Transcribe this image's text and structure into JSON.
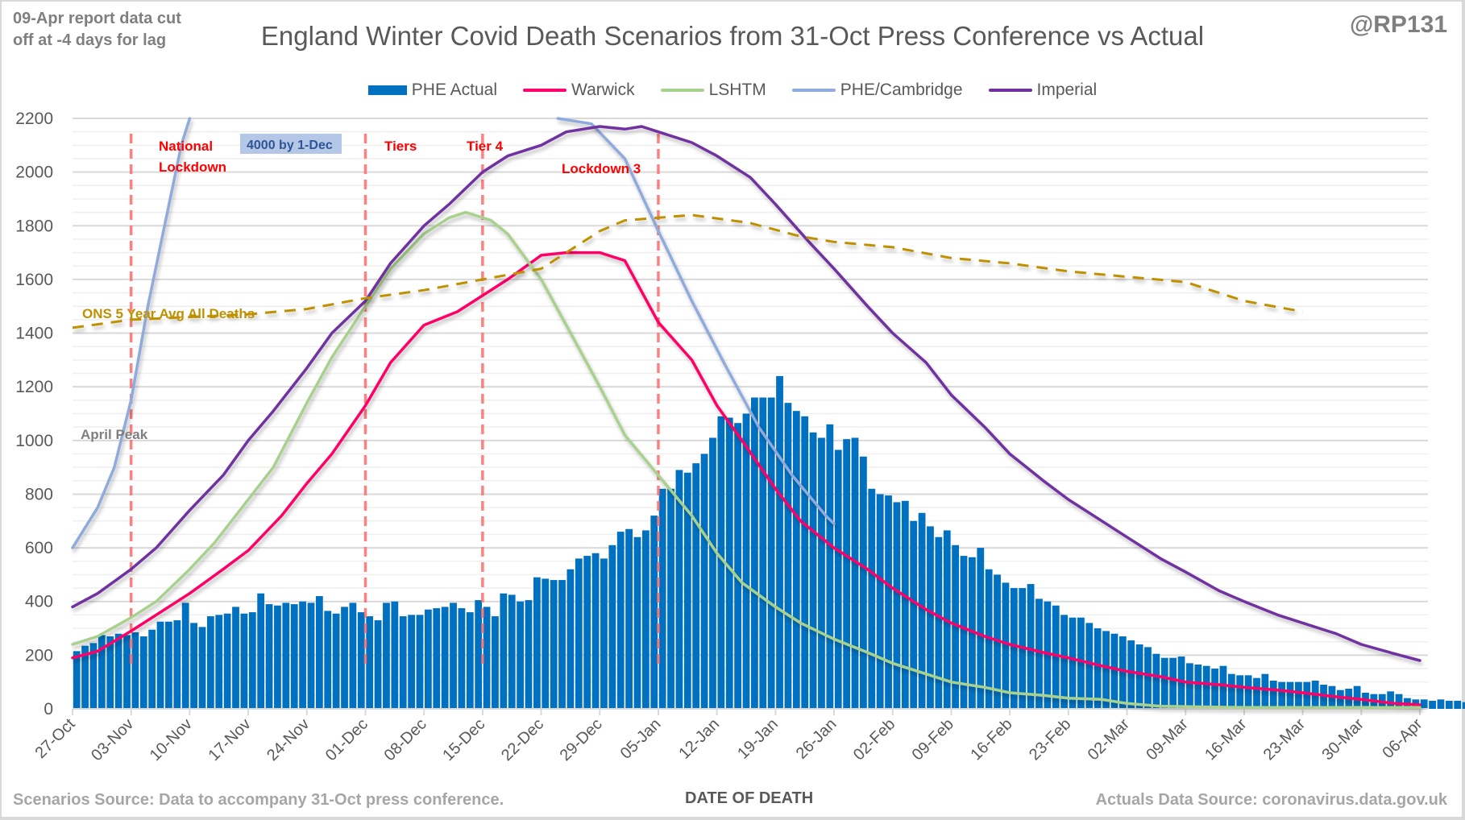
{
  "header": {
    "note": [
      "09-Apr report data cut",
      "off at -4 days for lag"
    ],
    "title": "England Winter Covid Death Scenarios from 31-Oct Press Conference vs Actual",
    "handle": "@RP131"
  },
  "footer": {
    "scenarios_source": "Scenarios Source: Data to accompany 31-Oct press conference.",
    "actuals_source": "Actuals Data Source: coronavirus.data.gov.uk"
  },
  "chart_data": {
    "type": "bar",
    "title": "England Winter Covid Death Scenarios from 31-Oct Press Conference vs Actual",
    "xlabel": "DATE OF DEATH",
    "ylabel": "",
    "ylim": [
      0,
      2200
    ],
    "yticks": [
      0,
      200,
      400,
      600,
      800,
      1000,
      1200,
      1400,
      1600,
      1800,
      2000,
      2200
    ],
    "y_minor_step": 50,
    "grid": true,
    "legend_position": "top",
    "x_start_date": "27-Oct",
    "x_days": 161,
    "xticks": [
      {
        "day": 0,
        "label": "27-Oct"
      },
      {
        "day": 7,
        "label": "03-Nov"
      },
      {
        "day": 14,
        "label": "10-Nov"
      },
      {
        "day": 21,
        "label": "17-Nov"
      },
      {
        "day": 28,
        "label": "24-Nov"
      },
      {
        "day": 35,
        "label": "01-Dec"
      },
      {
        "day": 42,
        "label": "08-Dec"
      },
      {
        "day": 49,
        "label": "15-Dec"
      },
      {
        "day": 56,
        "label": "22-Dec"
      },
      {
        "day": 63,
        "label": "29-Dec"
      },
      {
        "day": 70,
        "label": "05-Jan"
      },
      {
        "day": 77,
        "label": "12-Jan"
      },
      {
        "day": 84,
        "label": "19-Jan"
      },
      {
        "day": 91,
        "label": "26-Jan"
      },
      {
        "day": 98,
        "label": "02-Feb"
      },
      {
        "day": 105,
        "label": "09-Feb"
      },
      {
        "day": 112,
        "label": "16-Feb"
      },
      {
        "day": 119,
        "label": "23-Feb"
      },
      {
        "day": 126,
        "label": "02-Mar"
      },
      {
        "day": 133,
        "label": "09-Mar"
      },
      {
        "day": 140,
        "label": "16-Mar"
      },
      {
        "day": 147,
        "label": "23-Mar"
      },
      {
        "day": 154,
        "label": "30-Mar"
      },
      {
        "day": 161,
        "label": "06-Apr"
      }
    ],
    "legend": [
      {
        "name": "PHE Actual",
        "kind": "bar",
        "color": "#0070c0"
      },
      {
        "name": "Warwick",
        "kind": "line",
        "color": "#ff0066"
      },
      {
        "name": "LSHTM",
        "kind": "line",
        "color": "#a9d18e"
      },
      {
        "name": "PHE/Cambridge",
        "kind": "line",
        "color": "#8faadc"
      },
      {
        "name": "Imperial",
        "kind": "line",
        "color": "#7030a0"
      }
    ],
    "bars": {
      "name": "PHE Actual",
      "color": "#0070c0",
      "values": [
        215,
        235,
        245,
        275,
        270,
        280,
        275,
        285,
        270,
        295,
        325,
        325,
        330,
        395,
        320,
        305,
        345,
        350,
        355,
        380,
        355,
        360,
        430,
        390,
        385,
        395,
        390,
        400,
        395,
        420,
        365,
        355,
        380,
        395,
        360,
        345,
        330,
        395,
        400,
        345,
        350,
        350,
        370,
        375,
        380,
        395,
        375,
        360,
        405,
        380,
        345,
        430,
        425,
        400,
        405,
        490,
        485,
        480,
        480,
        520,
        560,
        570,
        580,
        560,
        610,
        660,
        670,
        640,
        665,
        720,
        820,
        820,
        890,
        880,
        915,
        950,
        1010,
        1090,
        1085,
        1065,
        1100,
        1160,
        1160,
        1160,
        1240,
        1140,
        1110,
        1090,
        1030,
        1010,
        1060,
        965,
        1005,
        1010,
        940,
        820,
        800,
        795,
        770,
        775,
        700,
        730,
        680,
        640,
        665,
        610,
        570,
        565,
        600,
        520,
        500,
        470,
        450,
        450,
        465,
        410,
        400,
        385,
        350,
        340,
        340,
        320,
        300,
        290,
        280,
        270,
        255,
        240,
        230,
        205,
        190,
        190,
        195,
        170,
        165,
        160,
        150,
        160,
        130,
        125,
        125,
        115,
        130,
        105,
        100,
        100,
        100,
        100,
        105,
        90,
        85,
        70,
        75,
        85,
        60,
        55,
        55,
        65,
        55,
        40,
        35,
        35,
        30,
        35,
        30,
        30,
        25,
        20,
        15,
        15,
        12,
        10
      ]
    },
    "series": [
      {
        "name": "Warwick",
        "color": "#ff0066",
        "points": [
          [
            0,
            190
          ],
          [
            3,
            215
          ],
          [
            7,
            290
          ],
          [
            10,
            350
          ],
          [
            14,
            430
          ],
          [
            18,
            520
          ],
          [
            21,
            590
          ],
          [
            25,
            720
          ],
          [
            28,
            840
          ],
          [
            31,
            950
          ],
          [
            35,
            1130
          ],
          [
            38,
            1290
          ],
          [
            42,
            1430
          ],
          [
            46,
            1480
          ],
          [
            49,
            1540
          ],
          [
            52,
            1600
          ],
          [
            56,
            1690
          ],
          [
            59,
            1700
          ],
          [
            63,
            1700
          ],
          [
            66,
            1670
          ],
          [
            70,
            1440
          ],
          [
            74,
            1300
          ],
          [
            77,
            1130
          ],
          [
            80,
            1000
          ],
          [
            84,
            820
          ],
          [
            87,
            700
          ],
          [
            91,
            600
          ],
          [
            95,
            520
          ],
          [
            98,
            450
          ],
          [
            102,
            370
          ],
          [
            105,
            320
          ],
          [
            109,
            270
          ],
          [
            112,
            240
          ],
          [
            116,
            210
          ],
          [
            119,
            190
          ],
          [
            123,
            160
          ],
          [
            126,
            140
          ],
          [
            130,
            120
          ],
          [
            133,
            100
          ],
          [
            137,
            90
          ],
          [
            140,
            80
          ],
          [
            144,
            70
          ],
          [
            147,
            60
          ],
          [
            151,
            45
          ],
          [
            154,
            35
          ],
          [
            158,
            20
          ],
          [
            161,
            15
          ]
        ]
      },
      {
        "name": "LSHTM",
        "color": "#a9d18e",
        "points": [
          [
            0,
            240
          ],
          [
            3,
            270
          ],
          [
            7,
            340
          ],
          [
            10,
            400
          ],
          [
            14,
            520
          ],
          [
            17,
            620
          ],
          [
            21,
            780
          ],
          [
            24,
            900
          ],
          [
            28,
            1140
          ],
          [
            31,
            1310
          ],
          [
            35,
            1500
          ],
          [
            38,
            1640
          ],
          [
            42,
            1770
          ],
          [
            45,
            1830
          ],
          [
            47,
            1850
          ],
          [
            50,
            1820
          ],
          [
            52,
            1770
          ],
          [
            56,
            1600
          ],
          [
            59,
            1430
          ],
          [
            63,
            1200
          ],
          [
            66,
            1020
          ],
          [
            70,
            870
          ],
          [
            74,
            720
          ],
          [
            77,
            580
          ],
          [
            80,
            470
          ],
          [
            84,
            380
          ],
          [
            87,
            320
          ],
          [
            91,
            260
          ],
          [
            95,
            210
          ],
          [
            98,
            170
          ],
          [
            102,
            130
          ],
          [
            105,
            100
          ],
          [
            109,
            80
          ],
          [
            112,
            60
          ],
          [
            116,
            50
          ],
          [
            119,
            40
          ],
          [
            123,
            35
          ],
          [
            126,
            20
          ],
          [
            130,
            10
          ],
          [
            140,
            5
          ],
          [
            161,
            5
          ]
        ]
      },
      {
        "name": "PHE/Cambridge",
        "color": "#8faadc",
        "points": [
          [
            0,
            600
          ],
          [
            3,
            750
          ],
          [
            5,
            900
          ],
          [
            7,
            1150
          ],
          [
            9,
            1500
          ],
          [
            11,
            1800
          ],
          [
            13,
            2100
          ],
          [
            14,
            2250
          ]
        ],
        "points_segment2": [
          [
            58,
            2250
          ],
          [
            62,
            2180
          ],
          [
            66,
            2050
          ],
          [
            70,
            1780
          ],
          [
            74,
            1520
          ],
          [
            78,
            1280
          ],
          [
            82,
            1050
          ],
          [
            86,
            870
          ],
          [
            90,
            720
          ],
          [
            91,
            690
          ]
        ]
      },
      {
        "name": "Imperial",
        "color": "#7030a0",
        "points": [
          [
            0,
            380
          ],
          [
            3,
            430
          ],
          [
            7,
            520
          ],
          [
            10,
            600
          ],
          [
            14,
            740
          ],
          [
            18,
            870
          ],
          [
            21,
            1000
          ],
          [
            24,
            1110
          ],
          [
            28,
            1270
          ],
          [
            31,
            1400
          ],
          [
            35,
            1520
          ],
          [
            38,
            1660
          ],
          [
            42,
            1800
          ],
          [
            45,
            1880
          ],
          [
            49,
            2000
          ],
          [
            52,
            2060
          ],
          [
            56,
            2100
          ],
          [
            59,
            2150
          ],
          [
            63,
            2170
          ],
          [
            66,
            2160
          ],
          [
            68,
            2170
          ],
          [
            70,
            2150
          ],
          [
            74,
            2110
          ],
          [
            77,
            2060
          ],
          [
            81,
            1980
          ],
          [
            84,
            1880
          ],
          [
            88,
            1740
          ],
          [
            91,
            1640
          ],
          [
            95,
            1500
          ],
          [
            98,
            1400
          ],
          [
            102,
            1290
          ],
          [
            105,
            1170
          ],
          [
            109,
            1050
          ],
          [
            112,
            950
          ],
          [
            116,
            850
          ],
          [
            119,
            780
          ],
          [
            123,
            700
          ],
          [
            126,
            640
          ],
          [
            130,
            560
          ],
          [
            133,
            510
          ],
          [
            137,
            440
          ],
          [
            140,
            400
          ],
          [
            144,
            350
          ],
          [
            147,
            320
          ],
          [
            151,
            280
          ],
          [
            154,
            240
          ],
          [
            158,
            205
          ],
          [
            161,
            180
          ]
        ]
      },
      {
        "name": "ONS 5 Year Avg All Deaths",
        "color": "#bf9000",
        "dashed": true,
        "points": [
          [
            0,
            1420
          ],
          [
            7,
            1450
          ],
          [
            14,
            1460
          ],
          [
            21,
            1470
          ],
          [
            28,
            1490
          ],
          [
            35,
            1530
          ],
          [
            42,
            1560
          ],
          [
            49,
            1600
          ],
          [
            56,
            1640
          ],
          [
            63,
            1780
          ],
          [
            66,
            1820
          ],
          [
            70,
            1830
          ],
          [
            74,
            1840
          ],
          [
            81,
            1810
          ],
          [
            87,
            1760
          ],
          [
            91,
            1740
          ],
          [
            98,
            1720
          ],
          [
            105,
            1680
          ],
          [
            112,
            1660
          ],
          [
            119,
            1630
          ],
          [
            126,
            1610
          ],
          [
            133,
            1590
          ],
          [
            140,
            1520
          ],
          [
            147,
            1480
          ]
        ]
      },
      {
        "name": "April Peak",
        "color": "#7f7f7f",
        "dashed": true,
        "constant": 975
      }
    ],
    "annotations": [
      {
        "text": [
          "National",
          "Lockdown"
        ],
        "day": 7,
        "style": "event"
      },
      {
        "text": [
          "4000 by 1-Dec"
        ],
        "style": "callout"
      },
      {
        "text": [
          "Tiers"
        ],
        "day": 35,
        "style": "event"
      },
      {
        "text": [
          "Tier 4"
        ],
        "day": 49,
        "style": "event"
      },
      {
        "text": [
          "Lockdown 3"
        ],
        "day": 70,
        "style": "event"
      },
      {
        "text": [
          "ONS 5 Year Avg All Deaths"
        ],
        "style": "series-label"
      },
      {
        "text": [
          "April Peak"
        ],
        "style": "series-label"
      }
    ]
  }
}
